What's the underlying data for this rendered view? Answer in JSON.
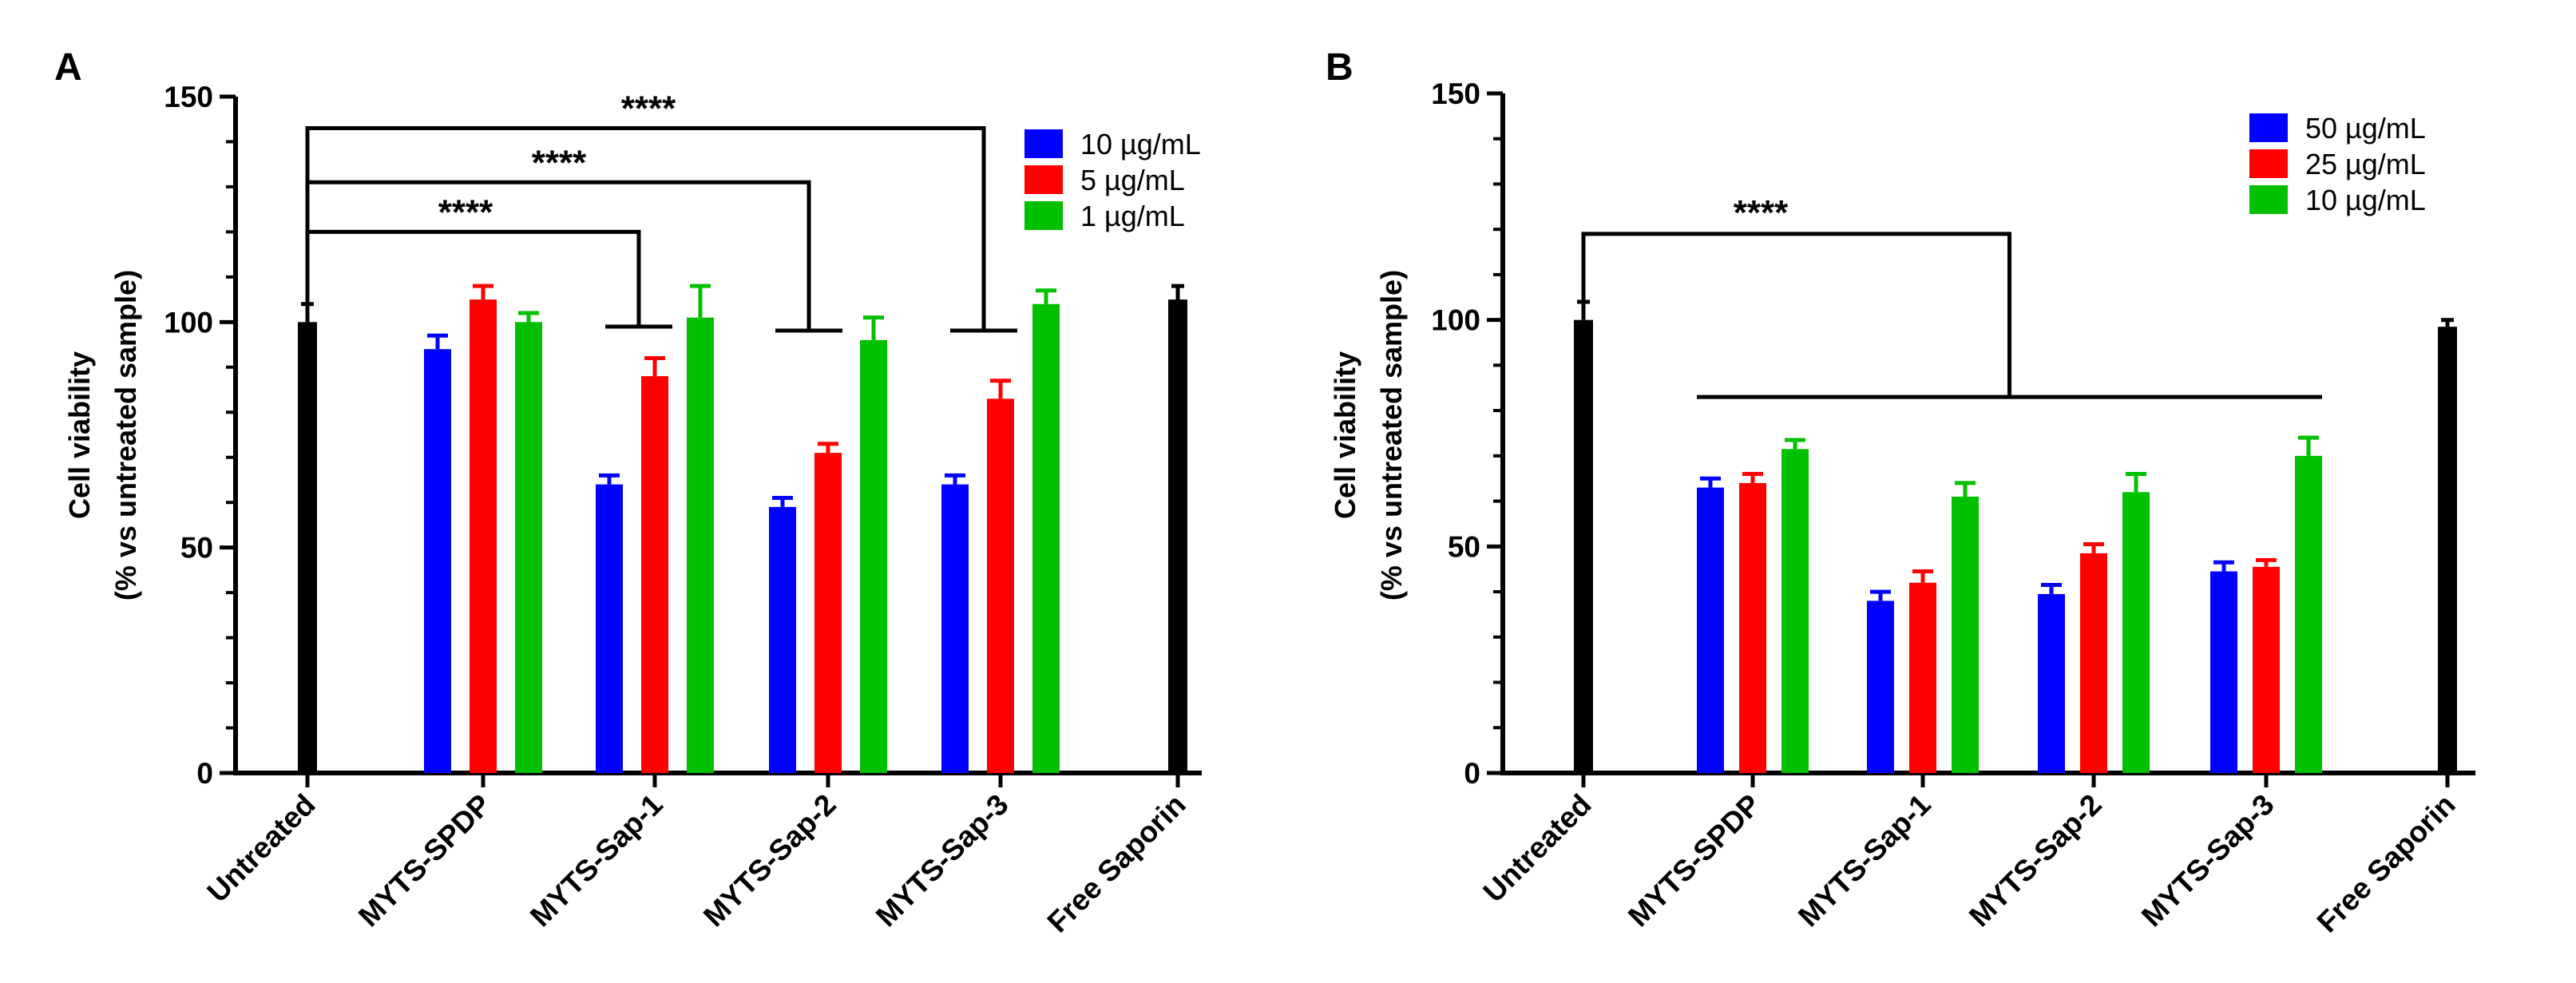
{
  "chart_data": [
    {
      "panel": "A",
      "type": "bar",
      "ylabel_line1": "Cell viability",
      "ylabel_line2": "(% vs untreated sample)",
      "ylim": [
        0,
        150
      ],
      "yticks": [
        0,
        50,
        100,
        150
      ],
      "categories": [
        "Untreated",
        "MYTS-SPDP",
        "MYTS-Sap-1",
        "MYTS-Sap-2",
        "MYTS-Sap-3",
        "Free Saporin"
      ],
      "single_bars": [
        {
          "category": "Untreated",
          "value": 100,
          "error": 4
        },
        {
          "category": "Free Saporin",
          "value": 105,
          "error": 3
        }
      ],
      "series": [
        {
          "name": "10 µg/mL",
          "color": "#0000ff",
          "values": [
            null,
            94,
            64,
            59,
            64,
            null
          ],
          "errors": [
            null,
            3,
            2,
            2,
            2,
            null
          ]
        },
        {
          "name": "5 µg/mL",
          "color": "#ff0000",
          "values": [
            null,
            105,
            88,
            71,
            83,
            null
          ],
          "errors": [
            null,
            3,
            4,
            2,
            4,
            null
          ]
        },
        {
          "name": "1 µg/mL",
          "color": "#00c000",
          "values": [
            null,
            100,
            101,
            96,
            104,
            null
          ],
          "errors": [
            null,
            2,
            7,
            5,
            3,
            null
          ]
        }
      ],
      "significance": [
        {
          "label": "****",
          "from": "Untreated",
          "to": "MYTS-Sap-1",
          "level": 120
        },
        {
          "label": "****",
          "from": "Untreated",
          "to": "MYTS-Sap-2",
          "level": 131
        },
        {
          "label": "****",
          "from": "Untreated",
          "to": "MYTS-Sap-3",
          "level": 143
        }
      ]
    },
    {
      "panel": "B",
      "type": "bar",
      "ylabel_line1": "Cell viability",
      "ylabel_line2": "(% vs untreated sample)",
      "ylim": [
        0,
        150
      ],
      "yticks": [
        0,
        50,
        100,
        150
      ],
      "categories": [
        "Untreated",
        "MYTS-SPDP",
        "MYTS-Sap-1",
        "MYTS-Sap-2",
        "MYTS-Sap-3",
        "Free Saporin"
      ],
      "single_bars": [
        {
          "category": "Untreated",
          "value": 100,
          "error": 4
        },
        {
          "category": "Free Saporin",
          "value": 98.5,
          "error": 1.5
        }
      ],
      "series": [
        {
          "name": "50 µg/mL",
          "color": "#0000ff",
          "values": [
            null,
            63,
            38,
            39.5,
            44.5,
            null
          ],
          "errors": [
            null,
            2,
            2,
            2,
            2,
            null
          ]
        },
        {
          "name": "25 µg/mL",
          "color": "#ff0000",
          "values": [
            null,
            64,
            42,
            48.5,
            45.5,
            null
          ],
          "errors": [
            null,
            2,
            2.5,
            2,
            1.5,
            null
          ]
        },
        {
          "name": "10 µg/mL",
          "color": "#00c000",
          "values": [
            null,
            71.5,
            61,
            62,
            70,
            null
          ],
          "errors": [
            null,
            2,
            3,
            4,
            4,
            null
          ]
        }
      ],
      "significance": [
        {
          "label": "****",
          "from": "Untreated",
          "to_group": [
            "MYTS-SPDP",
            "MYTS-Sap-3"
          ],
          "level": 119,
          "bottom_level": 83
        }
      ]
    }
  ]
}
